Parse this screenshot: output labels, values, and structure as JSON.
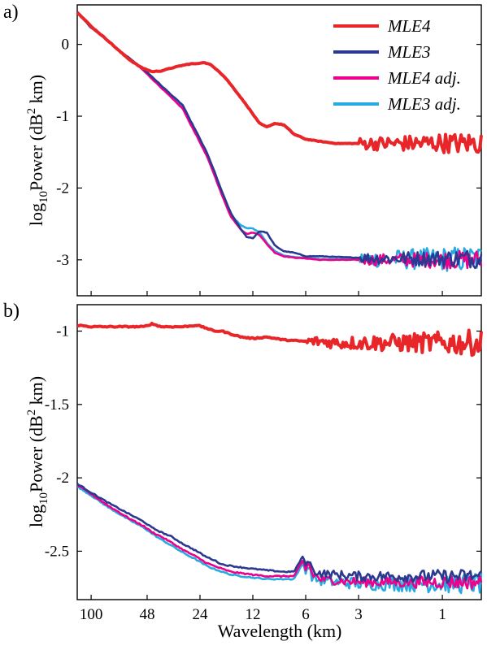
{
  "figure": {
    "xlabel": "Wavelength (km)",
    "ylabel_prefix": "log",
    "ylabel_sub": "10",
    "ylabel_mid": "Power (dB",
    "ylabel_sup": "2",
    "ylabel_suffix": " km)"
  },
  "colors": {
    "MLE4": "#e8262a",
    "MLE3": "#2b3990",
    "MLE4 adj.": "#ec008c",
    "MLE3 adj.": "#27aae1"
  },
  "chart_data": [
    {
      "type": "line",
      "panel_label": "a)",
      "x_scale": "log",
      "x_tick_labels": [
        "100",
        "48",
        "24",
        "12",
        "6",
        "3",
        "1"
      ],
      "x_tick_values": [
        100,
        48,
        24,
        12,
        6,
        3,
        1
      ],
      "xlim": [
        120,
        0.6
      ],
      "ylim": [
        -3.5,
        0.55
      ],
      "y_ticks": [
        0,
        -1,
        -2,
        -3
      ],
      "y_tick_labels": [
        "0",
        "-1",
        "-2",
        "-3"
      ],
      "legend": {
        "placement": "top-right",
        "entries": [
          "MLE4",
          "MLE3",
          "MLE4 adj.",
          "MLE3 adj."
        ]
      },
      "series": [
        {
          "name": "MLE4",
          "x": [
            120,
            100,
            80,
            70,
            60,
            52,
            45,
            40,
            35,
            30,
            27,
            25,
            23,
            21,
            19,
            17,
            15,
            13,
            12,
            11,
            10,
            9,
            8,
            7,
            6,
            5,
            4,
            3,
            2,
            1.5,
            1,
            0.8,
            0.6
          ],
          "y": [
            0.45,
            0.25,
            0.05,
            -0.08,
            -0.22,
            -0.32,
            -0.38,
            -0.37,
            -0.33,
            -0.29,
            -0.27,
            -0.27,
            -0.25,
            -0.28,
            -0.36,
            -0.48,
            -0.65,
            -0.85,
            -0.97,
            -1.1,
            -1.15,
            -1.1,
            -1.12,
            -1.25,
            -1.32,
            -1.35,
            -1.38,
            -1.38,
            -1.38,
            -1.38,
            -1.37,
            -1.38,
            -1.37
          ],
          "noise_from_x": 3,
          "noise_amplitude": 0.08
        },
        {
          "name": "MLE3",
          "x": [
            120,
            100,
            80,
            70,
            60,
            50,
            45,
            40,
            35,
            30,
            28,
            25,
            22,
            20,
            18,
            16,
            14,
            13,
            12,
            11,
            10,
            9,
            8,
            7,
            6,
            5,
            4,
            3,
            2,
            1.5,
            1,
            0.8,
            0.6
          ],
          "y": [
            0.45,
            0.23,
            0.05,
            -0.08,
            -0.2,
            -0.35,
            -0.45,
            -0.57,
            -0.7,
            -0.85,
            -1.0,
            -1.23,
            -1.5,
            -1.75,
            -2.05,
            -2.35,
            -2.58,
            -2.68,
            -2.7,
            -2.6,
            -2.62,
            -2.8,
            -2.88,
            -2.9,
            -2.95,
            -2.95,
            -2.96,
            -2.97,
            -2.98,
            -2.98,
            -2.98,
            -2.98,
            -2.98
          ],
          "noise_from_x": 3,
          "noise_amplitude": 0.07
        },
        {
          "name": "MLE4 adj.",
          "x": [
            120,
            100,
            80,
            70,
            60,
            50,
            45,
            40,
            35,
            30,
            28,
            25,
            22,
            20,
            18,
            16,
            14,
            13,
            12,
            11,
            10,
            9,
            8,
            7,
            6,
            5,
            4,
            3,
            2,
            1.5,
            1,
            0.8,
            0.6
          ],
          "y": [
            0.45,
            0.24,
            0.05,
            -0.08,
            -0.2,
            -0.37,
            -0.48,
            -0.6,
            -0.74,
            -0.9,
            -1.05,
            -1.28,
            -1.55,
            -1.8,
            -2.1,
            -2.4,
            -2.58,
            -2.64,
            -2.62,
            -2.65,
            -2.78,
            -2.9,
            -2.95,
            -2.97,
            -2.98,
            -3.0,
            -3.0,
            -3.0,
            -3.0,
            -3.0,
            -3.0,
            -3.0,
            -3.0
          ],
          "noise_from_x": 3,
          "noise_amplitude": 0.07
        },
        {
          "name": "MLE3 adj.",
          "x": [
            120,
            100,
            80,
            70,
            60,
            50,
            45,
            40,
            35,
            30,
            28,
            25,
            22,
            20,
            18,
            16,
            14,
            13,
            12,
            11,
            10,
            9,
            8,
            7,
            6,
            5,
            4,
            3,
            2,
            1.5,
            1,
            0.8,
            0.6
          ],
          "y": [
            0.45,
            0.24,
            0.05,
            -0.08,
            -0.2,
            -0.36,
            -0.47,
            -0.59,
            -0.72,
            -0.88,
            -1.03,
            -1.26,
            -1.52,
            -1.78,
            -2.08,
            -2.38,
            -2.52,
            -2.56,
            -2.56,
            -2.62,
            -2.76,
            -2.88,
            -2.94,
            -2.96,
            -2.97,
            -2.99,
            -2.99,
            -2.99,
            -2.99,
            -2.99,
            -2.99,
            -2.99,
            -2.99
          ],
          "noise_from_x": 3,
          "noise_amplitude": 0.1
        }
      ]
    },
    {
      "type": "line",
      "panel_label": "b)",
      "x_scale": "log",
      "x_tick_labels": [
        "100",
        "48",
        "24",
        "12",
        "6",
        "3",
        "1"
      ],
      "x_tick_values": [
        100,
        48,
        24,
        12,
        6,
        3,
        1
      ],
      "xlim": [
        120,
        0.6
      ],
      "ylim": [
        -2.83,
        -0.82
      ],
      "y_ticks": [
        -1,
        -1.5,
        -2,
        -2.5
      ],
      "y_tick_labels": [
        "-1",
        "-1.5",
        "-2",
        "-2.5"
      ],
      "series": [
        {
          "name": "MLE4",
          "x": [
            120,
            100,
            80,
            60,
            50,
            45,
            40,
            35,
            30,
            25,
            22,
            20,
            18,
            16,
            14,
            12,
            10,
            8,
            6,
            5,
            4,
            3,
            2,
            1.5,
            1,
            0.8,
            0.6
          ],
          "y": [
            -0.96,
            -0.97,
            -0.97,
            -0.97,
            -0.97,
            -0.95,
            -0.97,
            -0.97,
            -0.97,
            -0.96,
            -0.98,
            -1.0,
            -1.0,
            -1.02,
            -1.04,
            -1.05,
            -1.04,
            -1.06,
            -1.07,
            -1.07,
            -1.08,
            -1.08,
            -1.08,
            -1.08,
            -1.08,
            -1.08,
            -1.08
          ],
          "noise_from_x": 6,
          "noise_amplitude": 0.03,
          "noise_growth": 3
        },
        {
          "name": "MLE3",
          "x": [
            120,
            100,
            80,
            60,
            50,
            45,
            40,
            35,
            30,
            25,
            22,
            20,
            18,
            16,
            14,
            12,
            10,
            8,
            7,
            6.2,
            6,
            5.8,
            5.5,
            5.2,
            5,
            4,
            3,
            2,
            1.5,
            1,
            0.8,
            0.6
          ],
          "y": [
            -2.04,
            -2.1,
            -2.17,
            -2.25,
            -2.3,
            -2.34,
            -2.37,
            -2.4,
            -2.45,
            -2.5,
            -2.54,
            -2.56,
            -2.59,
            -2.6,
            -2.61,
            -2.62,
            -2.63,
            -2.64,
            -2.64,
            -2.53,
            -2.6,
            -2.54,
            -2.63,
            -2.64,
            -2.65,
            -2.66,
            -2.67,
            -2.67,
            -2.67,
            -2.67,
            -2.67,
            -2.67
          ],
          "noise_from_x": 6,
          "noise_amplitude": 0.025,
          "noise_growth": 2
        },
        {
          "name": "MLE4 adj.",
          "x": [
            120,
            100,
            80,
            60,
            50,
            45,
            40,
            35,
            30,
            25,
            22,
            20,
            18,
            16,
            14,
            12,
            10,
            8,
            7,
            6.2,
            6,
            5.8,
            5.5,
            5.2,
            5,
            4,
            3,
            2,
            1.5,
            1,
            0.8,
            0.6
          ],
          "y": [
            -2.05,
            -2.11,
            -2.19,
            -2.28,
            -2.33,
            -2.37,
            -2.4,
            -2.44,
            -2.49,
            -2.54,
            -2.58,
            -2.6,
            -2.62,
            -2.64,
            -2.65,
            -2.66,
            -2.67,
            -2.67,
            -2.67,
            -2.56,
            -2.63,
            -2.57,
            -2.66,
            -2.67,
            -2.69,
            -2.7,
            -2.71,
            -2.71,
            -2.71,
            -2.71,
            -2.71,
            -2.71
          ],
          "noise_from_x": 6,
          "noise_amplitude": 0.025,
          "noise_growth": 2
        },
        {
          "name": "MLE3 adj.",
          "x": [
            120,
            100,
            80,
            60,
            50,
            45,
            40,
            35,
            30,
            25,
            22,
            20,
            18,
            16,
            14,
            12,
            10,
            8,
            7,
            6.2,
            6,
            5.8,
            5.5,
            5.2,
            5,
            4,
            3,
            2,
            1.5,
            1,
            0.8,
            0.6
          ],
          "y": [
            -2.06,
            -2.12,
            -2.2,
            -2.29,
            -2.34,
            -2.38,
            -2.42,
            -2.46,
            -2.51,
            -2.56,
            -2.6,
            -2.62,
            -2.64,
            -2.66,
            -2.67,
            -2.68,
            -2.69,
            -2.69,
            -2.69,
            -2.58,
            -2.65,
            -2.59,
            -2.68,
            -2.69,
            -2.7,
            -2.71,
            -2.72,
            -2.72,
            -2.72,
            -2.72,
            -2.72,
            -2.72
          ],
          "noise_from_x": 6,
          "noise_amplitude": 0.03,
          "noise_growth": 2.5
        }
      ]
    }
  ]
}
